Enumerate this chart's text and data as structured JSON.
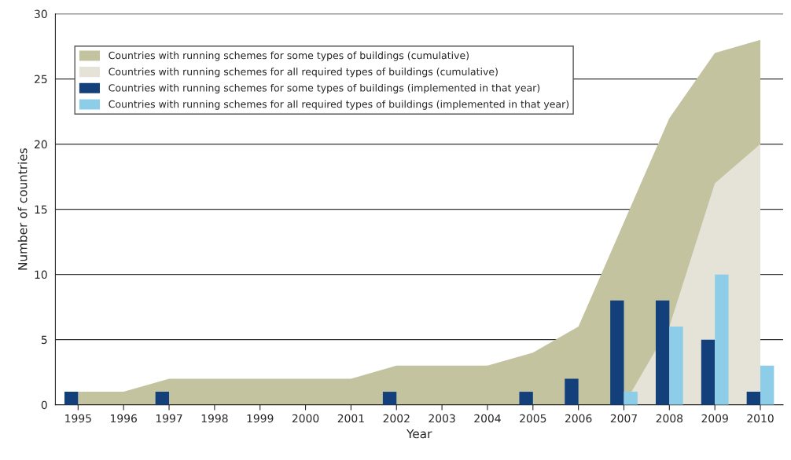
{
  "chart_data": {
    "type": "bar",
    "xlabel": "Year",
    "ylabel": "Number of countries",
    "categories": [
      "1995",
      "1996",
      "1997",
      "1998",
      "1999",
      "2000",
      "2001",
      "2002",
      "2003",
      "2004",
      "2005",
      "2006",
      "2007",
      "2008",
      "2009",
      "2010"
    ],
    "series": [
      {
        "name": "Countries with running schemes for some types of buildings (cumulative)",
        "type": "area",
        "color": "#c4c3a0",
        "values": [
          1,
          1,
          2,
          2,
          2,
          2,
          2,
          3,
          3,
          3,
          4,
          6,
          14,
          22,
          27,
          28
        ]
      },
      {
        "name": "Countries with running schemes for all required types of buildings (cumulative)",
        "type": "area",
        "color": "#e5e2d8",
        "values": [
          null,
          null,
          null,
          null,
          null,
          null,
          null,
          null,
          null,
          null,
          null,
          null,
          0,
          6,
          17,
          20
        ]
      },
      {
        "name": "Countries with running schemes for some types of buildings (implemented in that year)",
        "color": "#133f7a",
        "values": [
          1,
          null,
          1,
          null,
          null,
          null,
          null,
          1,
          null,
          null,
          1,
          2,
          8,
          8,
          5,
          1
        ]
      },
      {
        "name": "Countries with running schemes for all required types of buildings (implemented in that year)",
        "color": "#8dcde8",
        "values": [
          null,
          null,
          null,
          null,
          null,
          null,
          null,
          null,
          null,
          null,
          null,
          null,
          1,
          6,
          10,
          3
        ]
      }
    ],
    "ylim": [
      0,
      30
    ],
    "yticks": [
      0,
      5,
      10,
      15,
      20,
      25,
      30
    ],
    "grid": "y",
    "legend": "top left"
  }
}
